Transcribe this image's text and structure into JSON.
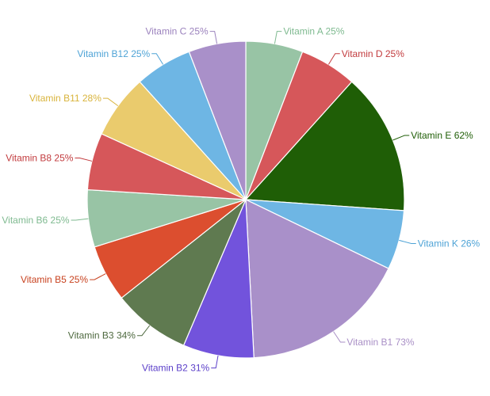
{
  "chart_data": {
    "type": "pie",
    "title": "",
    "start_angle_deg": 0,
    "direction": "clockwise",
    "slices": [
      {
        "label": "Vitamin A",
        "value": 25,
        "display": "25%",
        "color": "#98c4a5"
      },
      {
        "label": "Vitamin D",
        "value": 25,
        "display": "25%",
        "color": "#d6575a"
      },
      {
        "label": "Vitamin E",
        "value": 62,
        "display": "62%",
        "color": "#1f5e06"
      },
      {
        "label": "Vitamin K",
        "value": 26,
        "display": "26%",
        "color": "#6eb6e4"
      },
      {
        "label": "Vitamin B1",
        "value": 73,
        "display": "73%",
        "color": "#a990c9"
      },
      {
        "label": "Vitamin B2",
        "value": 31,
        "display": "31%",
        "color": "#7253dc"
      },
      {
        "label": "Vitamin B3",
        "value": 34,
        "display": "34%",
        "color": "#5f7a50"
      },
      {
        "label": "Vitamin B5",
        "value": 25,
        "display": "25%",
        "color": "#dc4e2f"
      },
      {
        "label": "Vitamin B6",
        "value": 25,
        "display": "25%",
        "color": "#98c4a5"
      },
      {
        "label": "Vitamin B8",
        "value": 25,
        "display": "25%",
        "color": "#d6575a"
      },
      {
        "label": "Vitamin B11",
        "value": 28,
        "display": "28%",
        "color": "#eacb6d"
      },
      {
        "label": "Vitamin B12",
        "value": 25,
        "display": "25%",
        "color": "#6eb6e4"
      },
      {
        "label": "Vitamin C",
        "value": 25,
        "display": "25%",
        "color": "#a990c9"
      }
    ],
    "label_colors": {
      "Vitamin A": "#7fba90",
      "Vitamin D": "#c23b3e",
      "Vitamin E": "#1f5e06",
      "Vitamin K": "#4ea3d6",
      "Vitamin B1": "#a98fc6",
      "Vitamin B2": "#5b3fc9",
      "Vitamin B3": "#4f6a40",
      "Vitamin B5": "#c8421f",
      "Vitamin B6": "#7fba90",
      "Vitamin B8": "#c23b3e",
      "Vitamin B11": "#d9b43c",
      "Vitamin B12": "#4ea3d6",
      "Vitamin C": "#9b82bd"
    },
    "legend": "none"
  }
}
